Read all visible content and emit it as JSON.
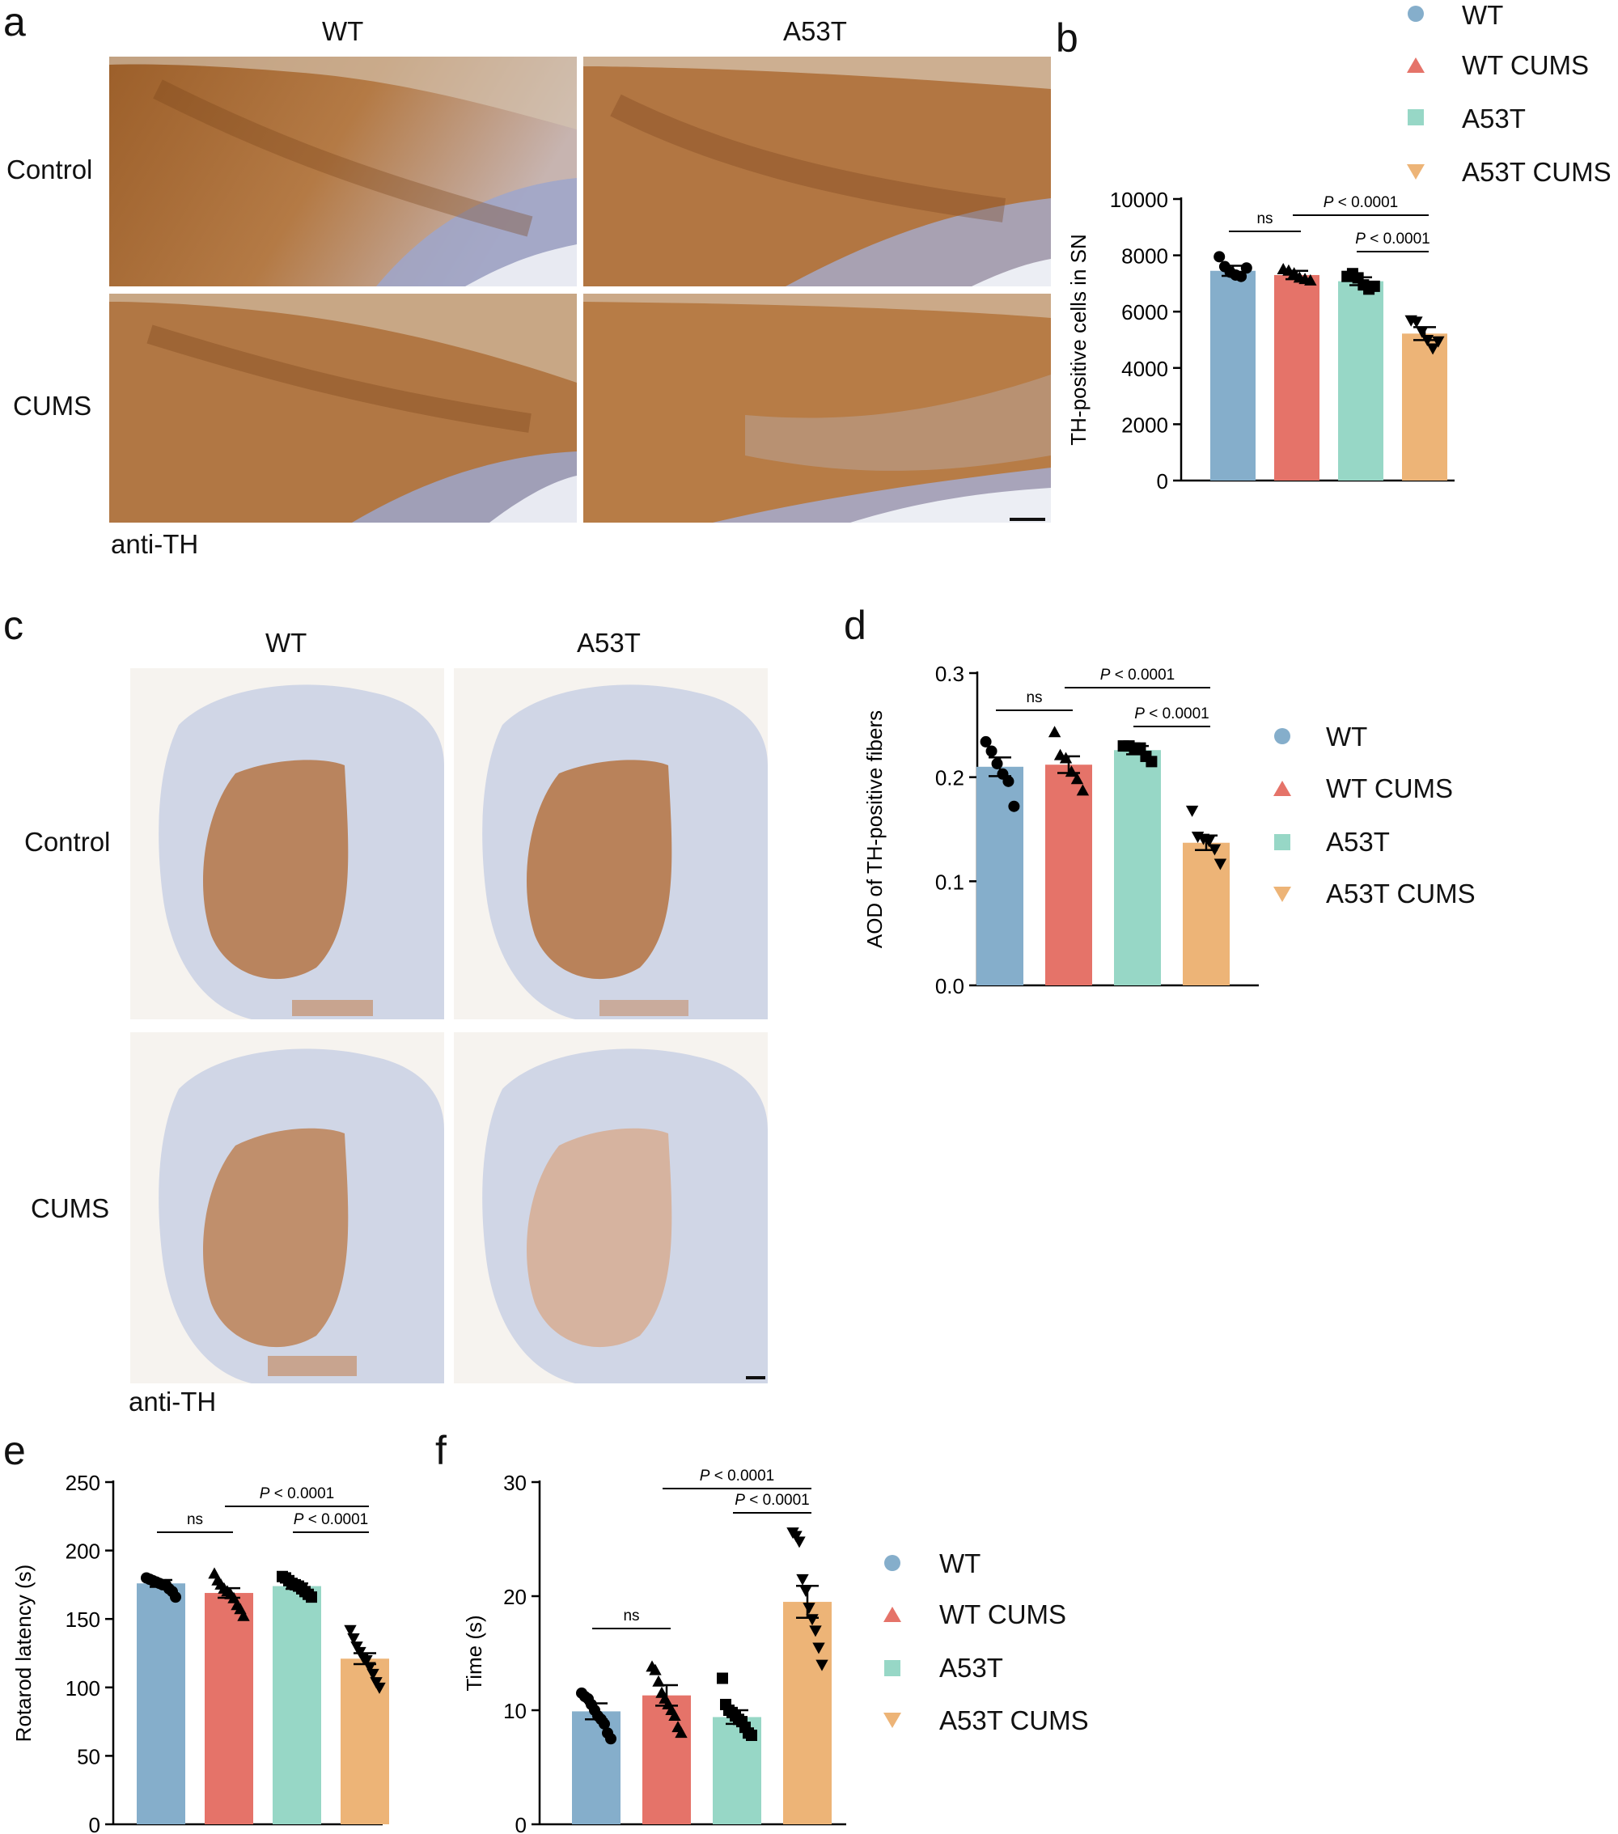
{
  "colors": {
    "WT": "#85aecb",
    "WT CUMS": "#e57369",
    "A53T": "#97d7c6",
    "A53T CUMS": "#edb477",
    "stain_brown": "#b0743c",
    "tissue_blue": "#c9d2e4",
    "background": "#ffffff"
  },
  "panels": {
    "a": {
      "letter": "a",
      "col_labels": [
        "WT",
        "A53T"
      ],
      "row_labels": [
        "Control",
        "CUMS"
      ],
      "stain_label": "anti-TH"
    },
    "c": {
      "letter": "c",
      "col_labels": [
        "WT",
        "A53T"
      ],
      "row_labels": [
        "Control",
        "CUMS"
      ],
      "stain_label": "anti-TH"
    }
  },
  "chart_data": [
    {
      "panel": "b",
      "type": "bar",
      "ylabel": "TH-positive cells in SN",
      "xlabel": "",
      "ylim": [
        0,
        10000
      ],
      "yticks": [
        0,
        2000,
        4000,
        6000,
        8000,
        10000
      ],
      "categories": [
        "WT",
        "WT CUMS",
        "A53T",
        "A53T CUMS"
      ],
      "values": [
        7450,
        7300,
        7080,
        5220
      ],
      "sem": [
        180,
        150,
        140,
        230
      ],
      "points": [
        [
          7950,
          7600,
          7400,
          7300,
          7250,
          7550
        ],
        [
          7500,
          7450,
          7350,
          7200,
          7150,
          7100
        ],
        [
          7250,
          7350,
          7200,
          6950,
          6800,
          6900
        ],
        [
          5700,
          5650,
          5300,
          5000,
          4700,
          4950
        ]
      ],
      "markers": [
        "circle",
        "triangle-up",
        "square",
        "triangle-down"
      ],
      "comparisons": [
        {
          "from": 0,
          "to": 1,
          "label": "ns"
        },
        {
          "from": 1,
          "to": 3,
          "label": "P < 0.0001"
        },
        {
          "from": 2,
          "to": 3,
          "label": "P < 0.0001"
        }
      ],
      "legend": [
        "WT",
        "WT CUMS",
        "A53T",
        "A53T CUMS"
      ],
      "legend_position": "top-right"
    },
    {
      "panel": "d",
      "type": "bar",
      "ylabel": "AOD of TH-positive fibers",
      "xlabel": "",
      "ylim": [
        0,
        0.3
      ],
      "yticks": [
        0.0,
        0.1,
        0.2,
        0.3
      ],
      "ytick_labels": [
        "0.0",
        "0.1",
        "0.2",
        "0.3"
      ],
      "categories": [
        "WT",
        "WT CUMS",
        "A53T",
        "A53T CUMS"
      ],
      "values": [
        0.21,
        0.212,
        0.226,
        0.137
      ],
      "sem": [
        0.009,
        0.008,
        0.004,
        0.007
      ],
      "points": [
        [
          0.234,
          0.225,
          0.213,
          0.203,
          0.196,
          0.172
        ],
        [
          0.243,
          0.221,
          0.218,
          0.205,
          0.198,
          0.187
        ],
        [
          0.23,
          0.23,
          0.228,
          0.228,
          0.22,
          0.215
        ],
        [
          0.168,
          0.143,
          0.141,
          0.139,
          0.131,
          0.117
        ]
      ],
      "markers": [
        "circle",
        "triangle-up",
        "square",
        "triangle-down"
      ],
      "comparisons": [
        {
          "from": 0,
          "to": 1,
          "label": "ns"
        },
        {
          "from": 1,
          "to": 3,
          "label": "P < 0.0001"
        },
        {
          "from": 2,
          "to": 3,
          "label": "P < 0.0001"
        }
      ],
      "legend": [
        "WT",
        "WT CUMS",
        "A53T",
        "A53T CUMS"
      ],
      "legend_position": "right"
    },
    {
      "panel": "e",
      "type": "bar",
      "ylabel": "Rotarod latency (s)",
      "xlabel": "",
      "ylim": [
        0,
        250
      ],
      "yticks": [
        0,
        50,
        100,
        150,
        200,
        250
      ],
      "categories": [
        "WT",
        "WT CUMS",
        "A53T",
        "A53T CUMS"
      ],
      "values": [
        176,
        169,
        174,
        121
      ],
      "sem": [
        2.5,
        3.5,
        2.0,
        4.0
      ],
      "points": [
        [
          180,
          179,
          178,
          177,
          176,
          175,
          175,
          172,
          170,
          166
        ],
        [
          183,
          178,
          175,
          172,
          170,
          168,
          165,
          160,
          157,
          152
        ],
        [
          181,
          180,
          178,
          176,
          175,
          174,
          172,
          170,
          168,
          166
        ],
        [
          142,
          136,
          130,
          126,
          122,
          120,
          115,
          110,
          104,
          100
        ]
      ],
      "markers": [
        "circle",
        "triangle-up",
        "square",
        "triangle-down"
      ],
      "comparisons": [
        {
          "from": 0,
          "to": 1,
          "label": "ns"
        },
        {
          "from": 1,
          "to": 3,
          "label": "P < 0.0001"
        },
        {
          "from": 2,
          "to": 3,
          "label": "P < 0.0001"
        }
      ]
    },
    {
      "panel": "f",
      "type": "bar",
      "ylabel": "Time (s)",
      "xlabel": "",
      "ylim": [
        0,
        30
      ],
      "yticks": [
        0,
        10,
        20,
        30
      ],
      "categories": [
        "WT",
        "WT CUMS",
        "A53T",
        "A53T CUMS"
      ],
      "values": [
        9.9,
        11.3,
        9.4,
        19.5
      ],
      "sem": [
        0.7,
        0.9,
        0.6,
        1.4
      ],
      "points": [
        [
          11.5,
          11.2,
          11.0,
          10.5,
          10.0,
          9.5,
          9.2,
          8.8,
          8.0,
          7.5
        ],
        [
          13.8,
          13.5,
          12.5,
          11.5,
          11.0,
          10.5,
          10.0,
          9.5,
          8.5,
          8.0
        ],
        [
          12.8,
          10.5,
          10.0,
          9.8,
          9.5,
          9.2,
          9.0,
          8.5,
          8.0,
          7.8
        ],
        [
          25.6,
          25.3,
          24.8,
          21.5,
          20.5,
          19.0,
          18.0,
          17.0,
          15.5,
          14.0
        ]
      ],
      "markers": [
        "circle",
        "triangle-up",
        "square",
        "triangle-down"
      ],
      "comparisons": [
        {
          "from": 0,
          "to": 1,
          "label": "ns"
        },
        {
          "from": 1,
          "to": 3,
          "label": "P < 0.0001"
        },
        {
          "from": 2,
          "to": 3,
          "label": "P < 0.0001"
        }
      ],
      "legend": [
        "WT",
        "WT CUMS",
        "A53T",
        "A53T CUMS"
      ],
      "legend_position": "right"
    }
  ]
}
